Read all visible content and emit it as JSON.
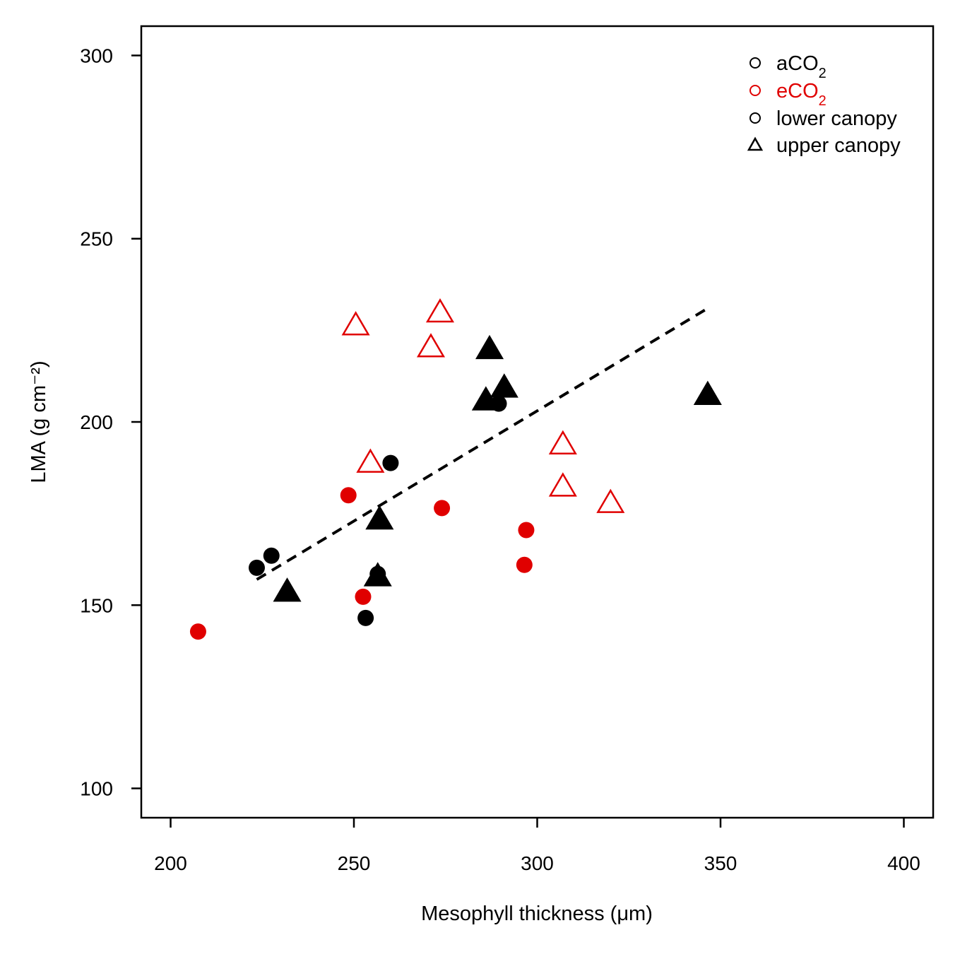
{
  "chart_data": {
    "type": "scatter",
    "xlabel": "Mesophyll thickness  (μm)",
    "ylabel": "LMA  (g cm⁻²)",
    "xlim": [
      192,
      408
    ],
    "ylim": [
      92,
      308
    ],
    "xticks": [
      "200",
      "250",
      "300",
      "350",
      "400"
    ],
    "yticks": [
      "100",
      "150",
      "200",
      "250",
      "300"
    ],
    "grid": false,
    "legend_position": "top-right",
    "legend": [
      {
        "label": "aCO2",
        "color": "#000000",
        "marker": "circle-open"
      },
      {
        "label": "eCO2",
        "color": "#e00000",
        "marker": "circle-open"
      },
      {
        "label": "lower canopy",
        "color": "#000000",
        "marker": "circle-open"
      },
      {
        "label": "upper canopy",
        "color": "#000000",
        "marker": "triangle-open"
      }
    ],
    "colors": {
      "aCO2": "#000000",
      "eCO2": "#e00000"
    },
    "series": [
      {
        "co2": "aCO2",
        "canopy": "lower canopy",
        "points": [
          [
            223.5,
            160.2
          ],
          [
            227.5,
            163.5
          ],
          [
            253.2,
            146.5
          ],
          [
            256.5,
            158.5
          ],
          [
            260.0,
            188.8
          ],
          [
            289.5,
            205.0
          ]
        ]
      },
      {
        "co2": "aCO2",
        "canopy": "upper canopy",
        "points": [
          [
            231.8,
            153.8
          ],
          [
            256.5,
            158.0
          ],
          [
            257.0,
            173.5
          ],
          [
            286.0,
            206.0
          ],
          [
            287.0,
            220.0
          ],
          [
            291.0,
            209.5
          ],
          [
            346.5,
            207.5
          ]
        ]
      },
      {
        "co2": "eCO2",
        "canopy": "lower canopy",
        "points": [
          [
            207.5,
            142.8
          ],
          [
            248.5,
            180.0
          ],
          [
            252.5,
            152.3
          ],
          [
            274.0,
            176.5
          ],
          [
            296.5,
            161.0
          ],
          [
            297.0,
            170.5
          ]
        ]
      },
      {
        "co2": "eCO2",
        "canopy": "upper canopy",
        "points": [
          [
            250.5,
            226.5
          ],
          [
            254.5,
            189.0
          ],
          [
            271.0,
            220.5
          ],
          [
            273.5,
            230.0
          ],
          [
            307.0,
            194.0
          ],
          [
            307.0,
            182.5
          ],
          [
            320.0,
            178.0
          ]
        ]
      }
    ],
    "trendline": {
      "style": "dashed",
      "x": [
        223.5,
        346.5
      ],
      "y": [
        157.0,
        231.0
      ]
    }
  }
}
